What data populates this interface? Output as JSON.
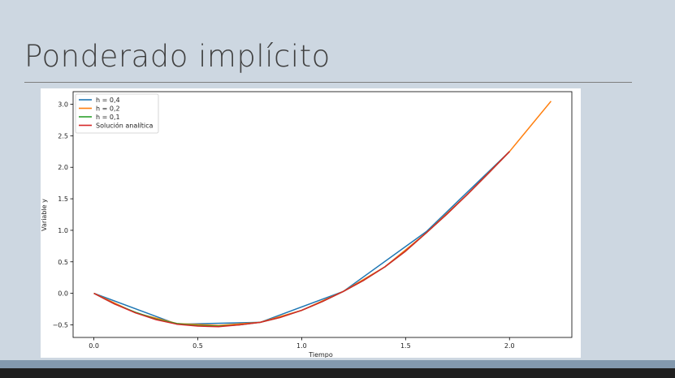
{
  "slide": {
    "title": "Ponderado implícito"
  },
  "chart_data": {
    "type": "line",
    "xlabel": "Tiempo",
    "ylabel": "Variable y",
    "xlim": [
      -0.1,
      2.3
    ],
    "ylim": [
      -0.7,
      3.2
    ],
    "xticks": [
      0.0,
      0.5,
      1.0,
      1.5,
      2.0
    ],
    "xtick_labels": [
      "0.0",
      "0.5",
      "1.0",
      "1.5",
      "2.0"
    ],
    "yticks": [
      -0.5,
      0.0,
      0.5,
      1.0,
      1.5,
      2.0,
      2.5,
      3.0
    ],
    "ytick_labels": [
      "−0.5",
      "0.0",
      "0.5",
      "1.0",
      "1.5",
      "2.0",
      "2.5",
      "3.0"
    ],
    "legend_position": "top-left",
    "series": [
      {
        "name": "h = 0,4",
        "color": "#1f77b4",
        "x": [
          0.0,
          0.4,
          0.8,
          1.2,
          1.6,
          2.0
        ],
        "y": [
          0.0,
          -0.49,
          -0.46,
          0.03,
          0.98,
          2.25
        ]
      },
      {
        "name": "h = 0,2",
        "color": "#ff7f0e",
        "x": [
          0.0,
          0.2,
          0.4,
          0.6,
          0.8,
          1.0,
          1.2,
          1.4,
          1.6,
          1.8,
          2.0,
          2.2
        ],
        "y": [
          0.0,
          -0.31,
          -0.48,
          -0.51,
          -0.46,
          -0.27,
          0.03,
          0.42,
          0.96,
          1.58,
          2.25,
          3.05
        ]
      },
      {
        "name": "h = 0,1",
        "color": "#2ca02c",
        "x": [
          0.0,
          0.1,
          0.2,
          0.3,
          0.4,
          0.5,
          0.6,
          0.7,
          0.8,
          0.9,
          1.0,
          1.1,
          1.2,
          1.3,
          1.4,
          1.5,
          1.6,
          1.7,
          1.8,
          1.9,
          2.0
        ],
        "y": [
          0.0,
          -0.17,
          -0.3,
          -0.41,
          -0.48,
          -0.51,
          -0.52,
          -0.5,
          -0.46,
          -0.38,
          -0.27,
          -0.13,
          0.03,
          0.21,
          0.42,
          0.67,
          0.96,
          1.26,
          1.58,
          1.91,
          2.25
        ]
      },
      {
        "name": "Solución analítica",
        "color": "#d62728",
        "x": [
          0.0,
          0.1,
          0.2,
          0.3,
          0.4,
          0.5,
          0.6,
          0.7,
          0.8,
          0.9,
          1.0,
          1.1,
          1.2,
          1.3,
          1.4,
          1.5,
          1.6,
          1.7,
          1.8,
          1.9,
          2.0
        ],
        "y": [
          0.0,
          -0.17,
          -0.31,
          -0.42,
          -0.49,
          -0.52,
          -0.53,
          -0.5,
          -0.46,
          -0.38,
          -0.27,
          -0.13,
          0.03,
          0.21,
          0.42,
          0.67,
          0.96,
          1.26,
          1.58,
          1.91,
          2.25
        ]
      }
    ]
  }
}
